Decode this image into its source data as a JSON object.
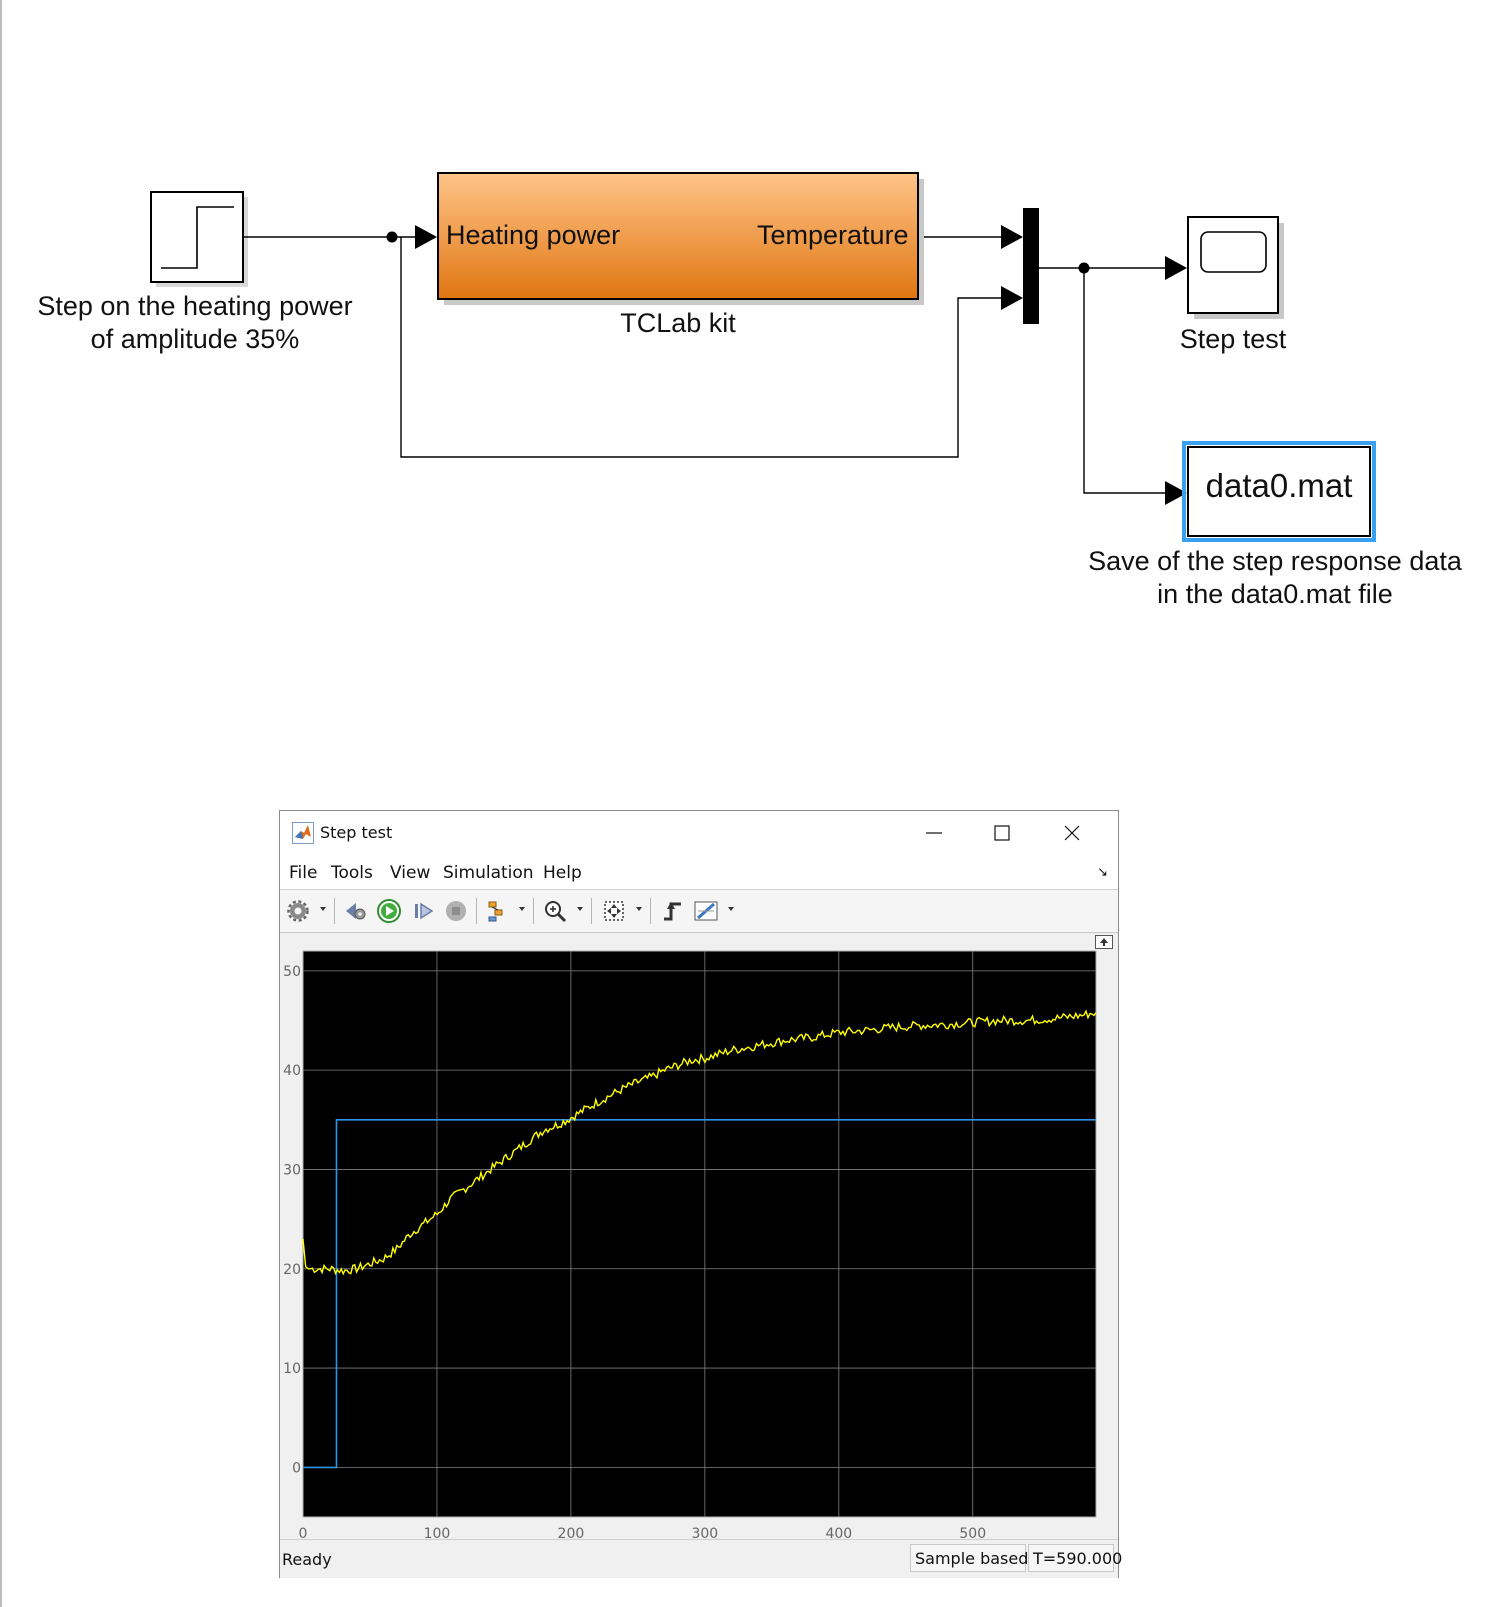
{
  "diagram": {
    "step_block_label_line1": "Step on the heating power",
    "step_block_label_line2": "of amplitude 35%",
    "subsystem": {
      "input_port": "Heating power",
      "output_port": "Temperature",
      "name": "TCLab kit"
    },
    "scope_block_name": "Step test",
    "to_file_block_text": "data0.mat",
    "to_file_label_line1": "Save of the step response data",
    "to_file_label_line2": "in the data0.mat file",
    "colors": {
      "subsystem_top": "#ffc488",
      "subsystem_bottom": "#e07612",
      "selection": "#3aa0f0"
    }
  },
  "scope_window": {
    "title": "Step test",
    "menu": [
      "File",
      "Tools",
      "View",
      "Simulation",
      "Help"
    ],
    "toolbar_icons": [
      "settings-icon",
      "step-back-icon",
      "run-icon",
      "step-forward-icon",
      "stop-icon",
      "highlight-icon",
      "zoom-icon",
      "autoscale-icon",
      "trigger-icon",
      "measurements-icon"
    ],
    "status": {
      "left": "Ready",
      "mode": "Sample based",
      "time": "T=590.000"
    },
    "colors": {
      "plot_bg": "#000000",
      "grid": "#808080",
      "temperature": "#ffff00",
      "step": "#2e95e6"
    }
  },
  "chart_data": {
    "type": "line",
    "x_ticks": [
      "0",
      "100",
      "200",
      "300",
      "400",
      "500"
    ],
    "y_ticks": [
      "0",
      "10",
      "20",
      "30",
      "40",
      "50"
    ],
    "xlim": [
      0,
      592
    ],
    "ylim": [
      -5,
      52
    ],
    "grid": true,
    "series": [
      {
        "color": "#2e95e6",
        "x": [
          0,
          25,
          25,
          592
        ],
        "y": [
          0,
          0,
          35,
          35
        ]
      },
      {
        "color": "#ffff00",
        "x": [
          0,
          2,
          4,
          10,
          20,
          30,
          40,
          50,
          60,
          70,
          80,
          90,
          100,
          110,
          120,
          130,
          140,
          150,
          160,
          170,
          180,
          190,
          200,
          210,
          220,
          230,
          240,
          250,
          260,
          270,
          280,
          290,
          300,
          320,
          340,
          360,
          380,
          400,
          420,
          440,
          460,
          480,
          500,
          520,
          540,
          560,
          580,
          592
        ],
        "y": [
          23,
          20.2,
          20,
          20,
          20,
          19.8,
          20,
          20.5,
          21,
          22,
          23.5,
          24.5,
          25.5,
          27,
          28,
          29,
          30,
          31,
          32,
          33,
          34,
          34.5,
          35.2,
          36,
          36.8,
          37.5,
          38.2,
          38.8,
          39.3,
          40,
          40.5,
          41,
          41.2,
          42,
          42.5,
          43,
          43.3,
          43.8,
          44,
          44.3,
          44.5,
          44.6,
          44.8,
          45,
          45,
          45.2,
          45.5,
          45.8
        ]
      }
    ]
  }
}
